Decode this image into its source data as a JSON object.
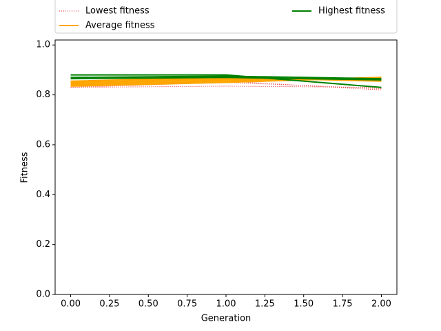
{
  "chart_data": {
    "type": "line",
    "xlabel": "Generation",
    "ylabel": "Fitness",
    "x": [
      0,
      1,
      2
    ],
    "xlim": [
      -0.1,
      2.1
    ],
    "ylim": [
      0,
      1.02
    ],
    "xticks": [
      {
        "value": 0,
        "label": "0.00"
      },
      {
        "value": 0.25,
        "label": "0.25"
      },
      {
        "value": 0.5,
        "label": "0.50"
      },
      {
        "value": 0.75,
        "label": "0.75"
      },
      {
        "value": 1,
        "label": "1.00"
      },
      {
        "value": 1.25,
        "label": "1.25"
      },
      {
        "value": 1.5,
        "label": "1.50"
      },
      {
        "value": 1.75,
        "label": "1.75"
      },
      {
        "value": 2,
        "label": "2.00"
      }
    ],
    "yticks": [
      {
        "value": 0,
        "label": "0.0"
      },
      {
        "value": 0.2,
        "label": "0.2"
      },
      {
        "value": 0.4,
        "label": "0.4"
      },
      {
        "value": 0.6,
        "label": "0.6"
      },
      {
        "value": 0.8,
        "label": "0.8"
      },
      {
        "value": 1,
        "label": "1.0"
      }
    ],
    "series": [
      {
        "name": "Lowest fitness",
        "color": "#e41a1c",
        "style": "dotted",
        "lines": [
          [
            0.83,
            0.835,
            0.83
          ],
          [
            0.83,
            0.85,
            0.825
          ],
          [
            0.83,
            0.855,
            0.82
          ]
        ]
      },
      {
        "name": "Average fitness",
        "color": "#ffa500",
        "style": "solid",
        "lines": [
          [
            0.835,
            0.85,
            0.87
          ],
          [
            0.84,
            0.855,
            0.87
          ],
          [
            0.845,
            0.86,
            0.865
          ],
          [
            0.85,
            0.865,
            0.86
          ],
          [
            0.855,
            0.87,
            0.855
          ]
        ]
      },
      {
        "name": "Highest fitness",
        "color": "#008000",
        "style": "solid",
        "lines": [
          [
            0.865,
            0.87,
            0.86
          ],
          [
            0.87,
            0.875,
            0.865
          ],
          [
            0.88,
            0.88,
            0.83
          ]
        ]
      }
    ]
  }
}
